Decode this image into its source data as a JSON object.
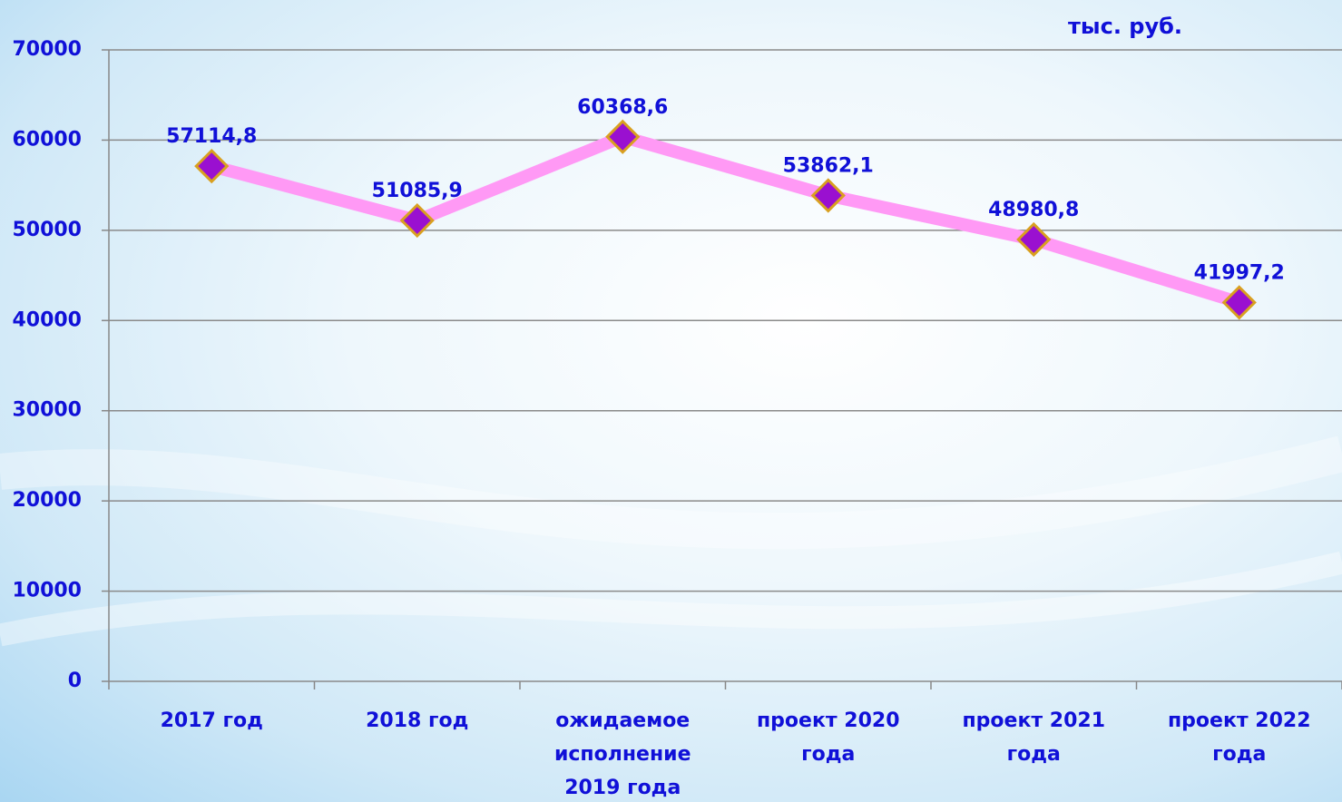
{
  "chart_data": {
    "type": "line",
    "subtitle": "тыс. руб.",
    "categories": [
      "2017 год",
      "2018 год",
      "ожидаемое исполнение 2019 года",
      "проект 2020 года",
      "проект 2021 года",
      "проект 2022 года"
    ],
    "series": [
      {
        "name": "",
        "color": "#ff99f5",
        "values": [
          57114.8,
          51085.9,
          60368.6,
          53862.1,
          48980.8,
          41997.2
        ],
        "value_labels": [
          "57114,8",
          "51085,9",
          "60368,6",
          "53862,1",
          "48980,8",
          "41997,2"
        ]
      }
    ],
    "marker_color": "#9a10d0",
    "ylim": [
      0,
      70000
    ],
    "yticks": [
      0,
      10000,
      20000,
      30000,
      40000,
      50000,
      60000,
      70000
    ],
    "grid": true
  }
}
